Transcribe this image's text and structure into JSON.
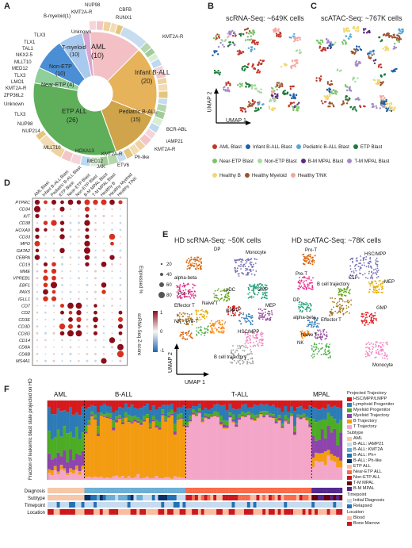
{
  "panels": {
    "a": "A",
    "b": "B",
    "c": "C",
    "d": "D",
    "e": "E",
    "f": "F"
  },
  "panel_a": {
    "inner": [
      "AML\n(10)",
      "Infant B-ALL\n(20)",
      "Pediatric B-ALL\n(15)",
      "ETP ALL\n(26)",
      "Near-ETP (4)",
      "Non-ETP\n(10)",
      "T-myeloid\n(10)",
      "Unknown"
    ],
    "outer": [
      "NUP98",
      "KMT2A-R",
      "B-myeloid(1)",
      "CBFB",
      "RUNX1",
      "KMT2A-R",
      "TLX3",
      "TLX1",
      "TAL1",
      "NKX2-5",
      "MLLT10",
      "MED12",
      "TLX3",
      "LMO1",
      "KMT2A-R",
      "ZFP36L2",
      "Unknown",
      "TLX3",
      "NUP98",
      "NUP214",
      "MLLT10",
      "HOXA13",
      "KMT2A-R",
      "MED12",
      "JAK",
      "ETV6",
      "Ph-like",
      "KMT2A-R",
      "iAMP21",
      "BCR-ABL"
    ]
  },
  "panel_b": {
    "title": "scRNA-Seq: ~649K cells",
    "xaxis": "UMAP 1",
    "yaxis": "UMAP 2"
  },
  "panel_c": {
    "title": "scATAC-Seq: ~767K cells"
  },
  "legend_bc": [
    {
      "label": "AML Blast",
      "color": "#c0392b"
    },
    {
      "label": "Infant B-ALL Blast",
      "color": "#1f5fa8"
    },
    {
      "label": "Pediatric B-ALL Blast",
      "color": "#5aa6d6"
    },
    {
      "label": "ETP Blast",
      "color": "#1e7a3a"
    },
    {
      "label": "Near-ETP Blast",
      "color": "#7cc36c"
    },
    {
      "label": "Non-ETP Blast",
      "color": "#a7d9a0"
    },
    {
      "label": "B-M MPAL Blast",
      "color": "#5b2c7a"
    },
    {
      "label": "T-M MPAL Blast",
      "color": "#a48bc7"
    },
    {
      "label": "Healthy B",
      "color": "#f0d872"
    },
    {
      "label": "Healthy Myeloid",
      "color": "#a0522d"
    },
    {
      "label": "Healthy T/NK",
      "color": "#f4a7a0"
    }
  ],
  "panel_d": {
    "columns": [
      "AML Blast",
      "Infant B-ALL Blast",
      "Pediatric B-ALL Blast",
      "ETP Blast",
      "Near-ETP Blast",
      "Non-ETP Blast",
      "B-M MPAL Blast",
      "T-M MPAL Blast",
      "Healthy B",
      "Healthy Myeloid",
      "Healthy T/NK"
    ],
    "genes": [
      "PTPRC",
      "CD34",
      "KIT",
      "CD38",
      "HOXA9",
      "CD33",
      "MPO",
      "GATA2",
      "CEBPA",
      "CD19",
      "MME",
      "VPREB1",
      "EBF1",
      "PAX5",
      "IGLL1",
      "CD7",
      "CD2",
      "CD3E",
      "CD3D",
      "CD3G",
      "CD14",
      "CD8A",
      "CD8B",
      "MS4A1"
    ],
    "size_title": "Expressed %",
    "size_values": [
      "20",
      "40",
      "60",
      "80"
    ],
    "color_title": "scRNA-Seq Z-score",
    "color_ticks": [
      "1",
      "0",
      "-1"
    ]
  },
  "panel_e": {
    "left_title": "HD scRNA-Seq: ~50K cells",
    "right_title": "HD scATAC-Seq: ~78K cells",
    "xaxis": "UMAP 1",
    "yaxis": "UMAP 2",
    "left_labels": [
      "DP",
      "Monocyte",
      "alpha-beta",
      "Pro-T",
      "pDC",
      "Effector T",
      "Naive T",
      "GMP",
      "ETP",
      "CLP",
      "MEP",
      "NK",
      "Pre-T",
      "HSC/MPP",
      "B cell trajectory"
    ],
    "right_labels": [
      "Pro-T",
      "HSC/MPP",
      "Pre-T",
      "CLP",
      "MEP",
      "B cell trajectory",
      "DP",
      "GMP",
      "alpha-beta",
      "Effector T",
      "Naive T",
      "NK",
      "Monocyte"
    ]
  },
  "panel_f": {
    "groups": [
      "AML",
      "B-ALL",
      "T-ALL",
      "MPAL"
    ],
    "yaxis": "Fraction of leukemic blast state projected on HD",
    "track_labels": [
      "Diagnosis",
      "Subtype",
      "Timepoint",
      "Location"
    ],
    "legend_sections": [
      {
        "title": "Projected Trajectory",
        "items": [
          {
            "label": "HSC/MPP/LMPP",
            "color": "#d7191c"
          },
          {
            "label": "Lymphoid Progenitor",
            "color": "#2c7bb6"
          },
          {
            "label": "Myeloid Progenitor",
            "color": "#4dac26"
          },
          {
            "label": "Myeloid Trajectory",
            "color": "#8e44ad"
          },
          {
            "label": "B Trajectory",
            "color": "#f39c12"
          },
          {
            "label": "T Trajectory",
            "color": "#f4a6c8"
          }
        ]
      },
      {
        "title": "Subtype",
        "items": [
          {
            "label": "AML",
            "color": "#f6c7a8"
          },
          {
            "label": "B-ALL: iAMP21",
            "color": "#c6dbef"
          },
          {
            "label": "B-ALL: KMT2A",
            "color": "#6baed6"
          },
          {
            "label": "B-ALL: Ph+",
            "color": "#2171b5"
          },
          {
            "label": "B-ALL: Ph-like",
            "color": "#08306b"
          },
          {
            "label": "ETP ALL",
            "color": "#fcbba1"
          },
          {
            "label": "Near-ETP ALL",
            "color": "#fb6a4a"
          },
          {
            "label": "Non-ETP ALL",
            "color": "#cb181d"
          },
          {
            "label": "T-M MPAL",
            "color": "#67000d"
          },
          {
            "label": "B-M MPAL",
            "color": "#54278f"
          }
        ]
      },
      {
        "title": "Timepoint",
        "items": [
          {
            "label": "Initial Diagnosis",
            "color": "#c6dbef"
          },
          {
            "label": "Relapsed",
            "color": "#2171b5"
          }
        ]
      },
      {
        "title": "Location",
        "items": [
          {
            "label": "Blood",
            "color": "#fcbba1"
          },
          {
            "label": "Bone Marrow",
            "color": "#cb181d"
          }
        ]
      }
    ]
  }
}
